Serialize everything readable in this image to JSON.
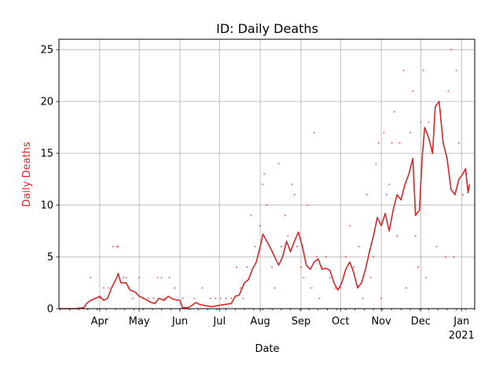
{
  "chart_data": {
    "type": "line",
    "title": "ID: Daily Deaths",
    "xlabel": "Date",
    "ylabel": "Daily Deaths",
    "color": "#d62728",
    "grid": true,
    "xlim": [
      "2020-03-01",
      "2021-01-11"
    ],
    "ylim": [
      0,
      26
    ],
    "yticks": [
      0,
      5,
      10,
      15,
      20,
      25
    ],
    "xticks": [
      {
        "date": "2020-04-01",
        "label": "Apr",
        "sublabel": ""
      },
      {
        "date": "2020-05-01",
        "label": "May",
        "sublabel": ""
      },
      {
        "date": "2020-06-01",
        "label": "Jun",
        "sublabel": ""
      },
      {
        "date": "2020-07-01",
        "label": "Jul",
        "sublabel": ""
      },
      {
        "date": "2020-08-01",
        "label": "Aug",
        "sublabel": ""
      },
      {
        "date": "2020-09-01",
        "label": "Sep",
        "sublabel": ""
      },
      {
        "date": "2020-10-01",
        "label": "Oct",
        "sublabel": ""
      },
      {
        "date": "2020-11-01",
        "label": "Nov",
        "sublabel": ""
      },
      {
        "date": "2020-12-01",
        "label": "Dec",
        "sublabel": ""
      },
      {
        "date": "2021-01-01",
        "label": "Jan",
        "sublabel": "2021"
      }
    ],
    "series": [
      {
        "kind": "line",
        "points": [
          [
            "2020-03-01",
            0
          ],
          [
            "2020-03-13",
            0
          ],
          [
            "2020-03-20",
            0.1
          ],
          [
            "2020-03-22",
            0.5
          ],
          [
            "2020-03-25",
            0.8
          ],
          [
            "2020-03-29",
            1.0
          ],
          [
            "2020-04-01",
            1.2
          ],
          [
            "2020-04-04",
            0.8
          ],
          [
            "2020-04-07",
            1.0
          ],
          [
            "2020-04-10",
            2.0
          ],
          [
            "2020-04-12",
            2.5
          ],
          [
            "2020-04-14",
            3.0
          ],
          [
            "2020-04-15",
            3.4
          ],
          [
            "2020-04-17",
            2.5
          ],
          [
            "2020-04-21",
            2.5
          ],
          [
            "2020-04-24",
            1.8
          ],
          [
            "2020-04-28",
            1.6
          ],
          [
            "2020-05-01",
            1.2
          ],
          [
            "2020-05-06",
            0.9
          ],
          [
            "2020-05-10",
            0.6
          ],
          [
            "2020-05-13",
            0.5
          ],
          [
            "2020-05-16",
            1.0
          ],
          [
            "2020-05-20",
            0.8
          ],
          [
            "2020-05-23",
            1.2
          ],
          [
            "2020-05-27",
            0.9
          ],
          [
            "2020-06-01",
            0.8
          ],
          [
            "2020-06-03",
            0.1
          ],
          [
            "2020-06-07",
            0.1
          ],
          [
            "2020-06-10",
            0.3
          ],
          [
            "2020-06-13",
            0.6
          ],
          [
            "2020-06-16",
            0.4
          ],
          [
            "2020-06-20",
            0.3
          ],
          [
            "2020-06-25",
            0.2
          ],
          [
            "2020-06-30",
            0.3
          ],
          [
            "2020-07-05",
            0.4
          ],
          [
            "2020-07-10",
            0.5
          ],
          [
            "2020-07-13",
            1.2
          ],
          [
            "2020-07-16",
            1.3
          ],
          [
            "2020-07-20",
            2.5
          ],
          [
            "2020-07-23",
            2.8
          ],
          [
            "2020-07-26",
            3.8
          ],
          [
            "2020-07-29",
            4.5
          ],
          [
            "2020-08-01",
            6.0
          ],
          [
            "2020-08-03",
            7.2
          ],
          [
            "2020-08-06",
            6.5
          ],
          [
            "2020-08-09",
            5.8
          ],
          [
            "2020-08-12",
            5.0
          ],
          [
            "2020-08-15",
            4.2
          ],
          [
            "2020-08-18",
            5.0
          ],
          [
            "2020-08-21",
            6.5
          ],
          [
            "2020-08-24",
            5.5
          ],
          [
            "2020-08-27",
            6.5
          ],
          [
            "2020-08-30",
            7.4
          ],
          [
            "2020-09-02",
            6.0
          ],
          [
            "2020-09-05",
            4.2
          ],
          [
            "2020-09-08",
            3.8
          ],
          [
            "2020-09-11",
            4.5
          ],
          [
            "2020-09-14",
            4.8
          ],
          [
            "2020-09-17",
            3.8
          ],
          [
            "2020-09-20",
            3.9
          ],
          [
            "2020-09-23",
            3.7
          ],
          [
            "2020-09-26",
            2.5
          ],
          [
            "2020-09-29",
            1.8
          ],
          [
            "2020-10-02",
            2.5
          ],
          [
            "2020-10-05",
            3.8
          ],
          [
            "2020-10-08",
            4.5
          ],
          [
            "2020-10-11",
            3.5
          ],
          [
            "2020-10-14",
            2.0
          ],
          [
            "2020-10-17",
            2.5
          ],
          [
            "2020-10-20",
            3.8
          ],
          [
            "2020-10-23",
            5.5
          ],
          [
            "2020-10-26",
            7.0
          ],
          [
            "2020-10-29",
            8.8
          ],
          [
            "2020-11-01",
            8.0
          ],
          [
            "2020-11-04",
            9.2
          ],
          [
            "2020-11-07",
            7.5
          ],
          [
            "2020-11-10",
            9.5
          ],
          [
            "2020-11-13",
            11.0
          ],
          [
            "2020-11-16",
            10.5
          ],
          [
            "2020-11-19",
            12.0
          ],
          [
            "2020-11-22",
            13.0
          ],
          [
            "2020-11-25",
            14.5
          ],
          [
            "2020-11-27",
            9.0
          ],
          [
            "2020-11-30",
            9.5
          ],
          [
            "2020-12-02",
            14.5
          ],
          [
            "2020-12-04",
            17.5
          ],
          [
            "2020-12-07",
            16.5
          ],
          [
            "2020-12-10",
            15.0
          ],
          [
            "2020-12-12",
            19.5
          ],
          [
            "2020-12-15",
            20.0
          ],
          [
            "2020-12-18",
            16.0
          ],
          [
            "2020-12-21",
            14.5
          ],
          [
            "2020-12-24",
            11.5
          ],
          [
            "2020-12-27",
            11.0
          ],
          [
            "2020-12-30",
            12.5
          ],
          [
            "2021-01-02",
            13.0
          ],
          [
            "2021-01-04",
            13.5
          ],
          [
            "2021-01-06",
            11.2
          ],
          [
            "2021-01-07",
            12.0
          ]
        ]
      },
      {
        "kind": "scatter",
        "points": [
          [
            "2020-03-25",
            3
          ],
          [
            "2020-03-28",
            1
          ],
          [
            "2020-04-01",
            1
          ],
          [
            "2020-04-04",
            2
          ],
          [
            "2020-04-08",
            2
          ],
          [
            "2020-04-11",
            6
          ],
          [
            "2020-04-14",
            6
          ],
          [
            "2020-04-15",
            6
          ],
          [
            "2020-04-19",
            3
          ],
          [
            "2020-04-21",
            3
          ],
          [
            "2020-04-23",
            2
          ],
          [
            "2020-04-26",
            1
          ],
          [
            "2020-05-01",
            3
          ],
          [
            "2020-05-04",
            1
          ],
          [
            "2020-05-08",
            1
          ],
          [
            "2020-05-12",
            1
          ],
          [
            "2020-05-15",
            3
          ],
          [
            "2020-05-18",
            3
          ],
          [
            "2020-05-20",
            1
          ],
          [
            "2020-05-24",
            3
          ],
          [
            "2020-05-28",
            2
          ],
          [
            "2020-06-03",
            1
          ],
          [
            "2020-06-12",
            1
          ],
          [
            "2020-06-18",
            2
          ],
          [
            "2020-06-24",
            1
          ],
          [
            "2020-06-28",
            1
          ],
          [
            "2020-07-02",
            1
          ],
          [
            "2020-07-06",
            1
          ],
          [
            "2020-07-10",
            1
          ],
          [
            "2020-07-14",
            4
          ],
          [
            "2020-07-17",
            2
          ],
          [
            "2020-07-19",
            1
          ],
          [
            "2020-07-22",
            4
          ],
          [
            "2020-07-25",
            9
          ],
          [
            "2020-07-28",
            6
          ],
          [
            "2020-08-01",
            8
          ],
          [
            "2020-08-03",
            12
          ],
          [
            "2020-08-04",
            13
          ],
          [
            "2020-08-06",
            10
          ],
          [
            "2020-08-10",
            4
          ],
          [
            "2020-08-12",
            2
          ],
          [
            "2020-08-15",
            14
          ],
          [
            "2020-08-17",
            6
          ],
          [
            "2020-08-20",
            9
          ],
          [
            "2020-08-22",
            7
          ],
          [
            "2020-08-25",
            12
          ],
          [
            "2020-08-27",
            11
          ],
          [
            "2020-08-29",
            6
          ],
          [
            "2020-09-01",
            4
          ],
          [
            "2020-09-03",
            3
          ],
          [
            "2020-09-06",
            10
          ],
          [
            "2020-09-09",
            2
          ],
          [
            "2020-09-11",
            17
          ],
          [
            "2020-09-13",
            5
          ],
          [
            "2020-09-15",
            1
          ],
          [
            "2020-09-17",
            4
          ],
          [
            "2020-09-20",
            5
          ],
          [
            "2020-09-23",
            3
          ],
          [
            "2020-09-27",
            2
          ],
          [
            "2020-10-01",
            2
          ],
          [
            "2020-10-05",
            5
          ],
          [
            "2020-10-08",
            8
          ],
          [
            "2020-10-11",
            4
          ],
          [
            "2020-10-15",
            6
          ],
          [
            "2020-10-18",
            1
          ],
          [
            "2020-10-21",
            11
          ],
          [
            "2020-10-24",
            3
          ],
          [
            "2020-10-26",
            5
          ],
          [
            "2020-10-28",
            14
          ],
          [
            "2020-10-30",
            16
          ],
          [
            "2020-11-01",
            1
          ],
          [
            "2020-11-03",
            17
          ],
          [
            "2020-11-05",
            11
          ],
          [
            "2020-11-07",
            12
          ],
          [
            "2020-11-09",
            16
          ],
          [
            "2020-11-11",
            19
          ],
          [
            "2020-11-13",
            7
          ],
          [
            "2020-11-15",
            16
          ],
          [
            "2020-11-18",
            23
          ],
          [
            "2020-11-20",
            2
          ],
          [
            "2020-11-23",
            17
          ],
          [
            "2020-11-25",
            21
          ],
          [
            "2020-11-27",
            7
          ],
          [
            "2020-11-29",
            4
          ],
          [
            "2020-12-01",
            18
          ],
          [
            "2020-12-03",
            23
          ],
          [
            "2020-12-05",
            3
          ],
          [
            "2020-12-07",
            18
          ],
          [
            "2020-12-10",
            15
          ],
          [
            "2020-12-13",
            6
          ],
          [
            "2020-12-16",
            19
          ],
          [
            "2020-12-18",
            16
          ],
          [
            "2020-12-20",
            5
          ],
          [
            "2020-12-22",
            21
          ],
          [
            "2020-12-24",
            25
          ],
          [
            "2020-12-26",
            5
          ],
          [
            "2020-12-28",
            23
          ],
          [
            "2020-12-30",
            16
          ],
          [
            "2021-01-02",
            11
          ],
          [
            "2021-01-05",
            13
          ]
        ]
      }
    ]
  }
}
